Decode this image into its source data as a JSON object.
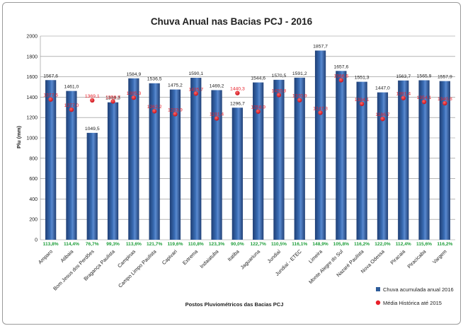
{
  "chart_data": {
    "type": "bar",
    "title": "Chuva Anual nas Bacias PCJ - 2016",
    "xlabel": "Postos Pluviométricos das Bacias  PCJ",
    "ylabel": "Plu (mm)",
    "ylim": [
      0,
      2000
    ],
    "yticks": [
      "0",
      "200",
      "400",
      "600",
      "800",
      "1000",
      "1200",
      "1400",
      "1600",
      "1800",
      "2000"
    ],
    "grid": true,
    "legend_placement": "bottom-right",
    "categories": [
      "Amparo",
      "Atibaia",
      "Bom Jesus dos Perdões",
      "Bragança Paulista",
      "Campinas",
      "Campo Limpo Paulista",
      "Capivari",
      "Extrema",
      "Indaiatuba",
      "Itatiba",
      "Jaguariuna",
      "Jundiaí",
      "Jundiaí - ETEC",
      "Limeira",
      "Monte Alegre do Sul",
      "Nazaré Paulista",
      "Nova Odessa",
      "Piracaia",
      "Piracicaba",
      "Vargem"
    ],
    "series": [
      {
        "name": "Chuva acumulada anual 2016",
        "values": [
          1567.6,
          1461.0,
          1049.5,
          1349.3,
          1584.9,
          1536.5,
          1475.2,
          1590.1,
          1469.2,
          1296.7,
          1544.6,
          1570.5,
          1591.2,
          1857.7,
          1657.6,
          1551.3,
          1447.0,
          1563.7,
          1565.9,
          1557.9
        ],
        "labels": [
          "1567,6",
          "1461,0",
          "1049,5",
          "1349,3",
          "1584,9",
          "1536,5",
          "1475,2",
          "1590,1",
          "1469,2",
          "1296,7",
          "1544,6",
          "1570,5",
          "1591,2",
          "1857,7",
          "1657,6",
          "1551,3",
          "1447,0",
          "1563,7",
          "1565,9",
          "1557,9"
        ],
        "color": "#2e5c9a"
      },
      {
        "name": "Média Histórica até 2015",
        "values": [
          1377.6,
          1277.0,
          1369.1,
          1358.7,
          1395.3,
          1262.2,
          1233.9,
          1435.7,
          1191.4,
          1440.3,
          1258.9,
          1420.8,
          1370.9,
          1247.3,
          1566.6,
          1334.1,
          1186.7,
          1391.4,
          1354.1,
          1340.8
        ],
        "labels": [
          "1377,6",
          "1277,0",
          "1369,1",
          "1358,7",
          "1395,3",
          "1262,2",
          "1233,9",
          "1435,7",
          "1191,4",
          "1440,3",
          "1258,9",
          "1420,8",
          "1370,9",
          "1247,3",
          "1566,6",
          "1334,1",
          "1186,7",
          "1391,4",
          "1354,1",
          "1340,8"
        ],
        "color": "#e8202a"
      }
    ],
    "percentages": [
      "113,8%",
      "114,4%",
      "76,7%",
      "99,3%",
      "113,6%",
      "121,7%",
      "119,6%",
      "110,8%",
      "123,3%",
      "90,0%",
      "122,7%",
      "110,5%",
      "116,1%",
      "148,9%",
      "105,8%",
      "116,2%",
      "122,0%",
      "112,4%",
      "115,6%",
      "116,2%"
    ],
    "percent_color": "#1e9e3a"
  }
}
